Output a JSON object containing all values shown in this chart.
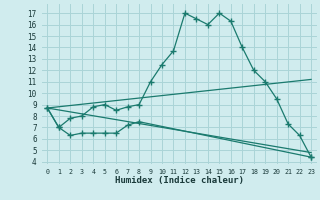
{
  "background_color": "#d0ecee",
  "grid_color": "#aad4d7",
  "line_color": "#1a7a6e",
  "xlabel": "Humidex (Indice chaleur)",
  "xlim": [
    -0.5,
    23.5
  ],
  "ylim": [
    3.8,
    17.8
  ],
  "yticks": [
    4,
    5,
    6,
    7,
    8,
    9,
    10,
    11,
    12,
    13,
    14,
    15,
    16,
    17
  ],
  "xticks": [
    0,
    1,
    2,
    3,
    4,
    5,
    6,
    7,
    8,
    9,
    10,
    11,
    12,
    13,
    14,
    15,
    16,
    17,
    18,
    19,
    20,
    21,
    22,
    23
  ],
  "line1_x": [
    0,
    1,
    2,
    3,
    4,
    5,
    6,
    7,
    8,
    9,
    10,
    11,
    12,
    13,
    14,
    15,
    16,
    17,
    18,
    19,
    20,
    21,
    22,
    23
  ],
  "line1_y": [
    8.7,
    7.0,
    7.8,
    8.0,
    8.8,
    9.0,
    8.5,
    8.8,
    9.0,
    11.0,
    12.5,
    13.7,
    17.0,
    16.5,
    16.0,
    17.0,
    16.3,
    14.0,
    12.0,
    11.0,
    9.5,
    7.3,
    6.3,
    4.4
  ],
  "line2_x": [
    0,
    1,
    2,
    3,
    4,
    5,
    6,
    7,
    8,
    23
  ],
  "line2_y": [
    8.7,
    7.0,
    6.3,
    6.5,
    6.5,
    6.5,
    6.5,
    7.2,
    7.5,
    4.4
  ],
  "line3_x": [
    0,
    23
  ],
  "line3_y": [
    8.7,
    11.2
  ],
  "line4_x": [
    0,
    23
  ],
  "line4_y": [
    8.7,
    4.8
  ]
}
